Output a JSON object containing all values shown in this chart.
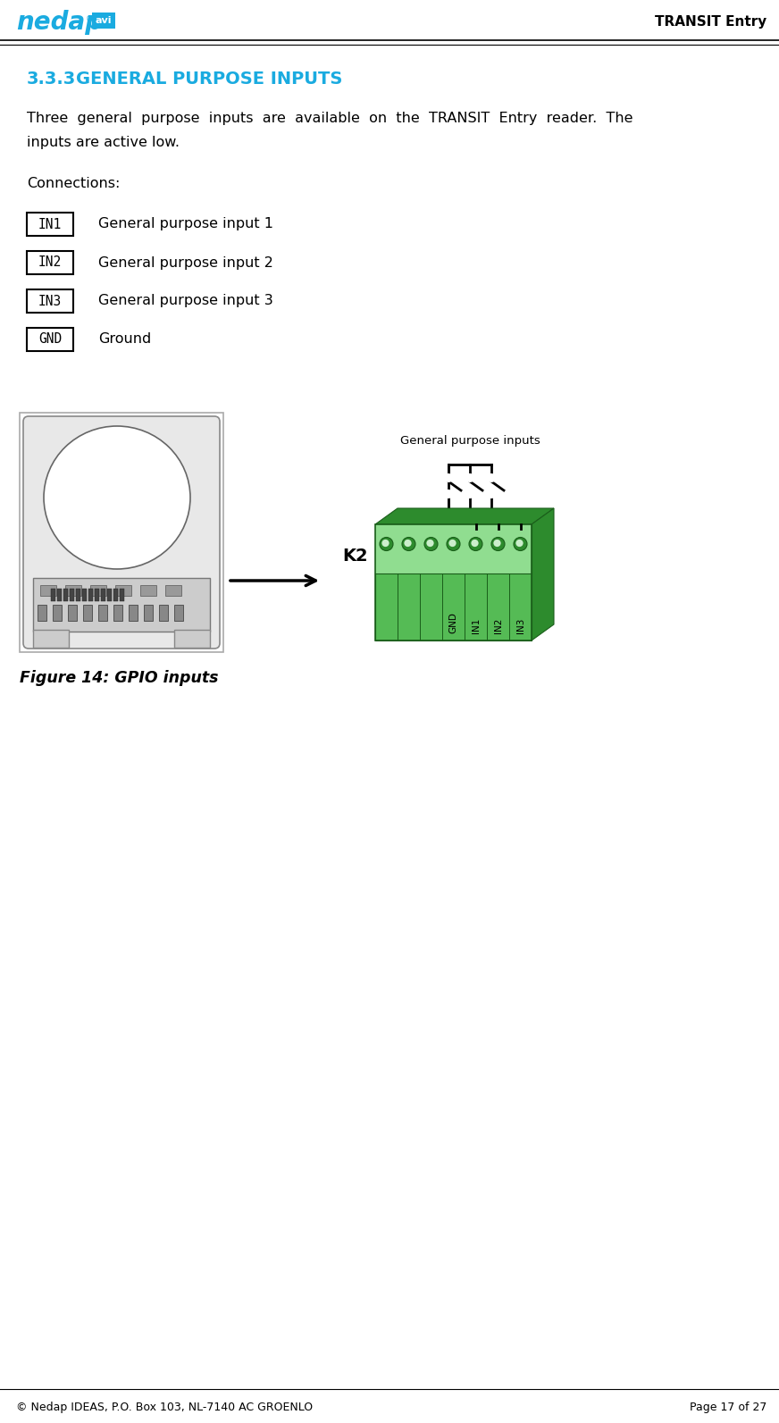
{
  "title_right": "TRANSIT Entry",
  "section_num": "3.3.3",
  "section_title": "  GENERAL PURPOSE INPUTS",
  "body_text_line1": "Three  general  purpose  inputs  are  available  on  the  TRANSIT  Entry  reader.  The",
  "body_text_line2": "inputs are active low.",
  "connections_label": "Connections:",
  "connections": [
    {
      "label": "IN1",
      "desc": "General purpose input 1"
    },
    {
      "label": "IN2",
      "desc": "General purpose input 2"
    },
    {
      "label": "IN3",
      "desc": "General purpose input 3"
    },
    {
      "label": "GND",
      "desc": "Ground"
    }
  ],
  "figure_caption": "Figure 14: GPIO inputs",
  "connector_label": "K2",
  "connector_title": "General purpose inputs",
  "connector_pins": [
    "GND",
    "IN1",
    "IN2",
    "IN3"
  ],
  "footer_left": "© Nedap IDEAS, P.O. Box 103, NL-7140 AC GROENLO",
  "footer_right": "Page 17 of 27",
  "bg_color": "#ffffff",
  "text_color": "#000000",
  "header_blue": "#1aabe0",
  "section_title_color": "#1aabe0",
  "connector_green_light": "#90dd90",
  "connector_green_mid": "#55bb55",
  "connector_green_dark": "#2d8b2d",
  "connector_green_shadow": "#1a5e1a"
}
